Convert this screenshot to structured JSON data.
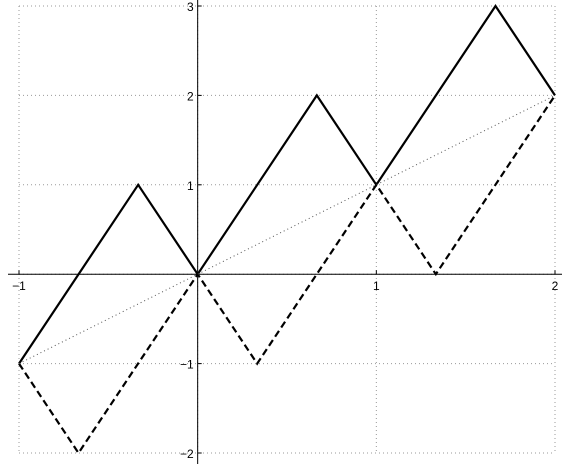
{
  "chart_data": {
    "type": "line",
    "title": "",
    "xlabel": "",
    "ylabel": "",
    "xlim": [
      -1,
      2
    ],
    "ylim": [
      -2,
      3
    ],
    "grid": true,
    "legend": "none",
    "x_ticks": [
      -1,
      1,
      2
    ],
    "y_ticks": [
      -2,
      -1,
      1,
      2,
      3
    ],
    "x_tick_labels": [
      "−1",
      "1",
      "2"
    ],
    "y_tick_labels": [
      "−2",
      "−1",
      "1",
      "2",
      "3"
    ],
    "series": [
      {
        "style": "solid",
        "color": "#000000",
        "x": [
          -1,
          -0.333,
          0,
          0.667,
          1,
          1.667,
          2
        ],
        "y": [
          -1,
          1,
          0,
          2,
          1,
          3,
          2
        ]
      },
      {
        "style": "dashed",
        "color": "#000000",
        "x": [
          -1,
          -0.667,
          0,
          0.333,
          1,
          1.333,
          2
        ],
        "y": [
          -1,
          -2,
          0,
          -1,
          1,
          0,
          2
        ]
      },
      {
        "style": "dotted",
        "color": "#555555",
        "x": [
          -1,
          2
        ],
        "y": [
          -1,
          2
        ]
      }
    ]
  }
}
